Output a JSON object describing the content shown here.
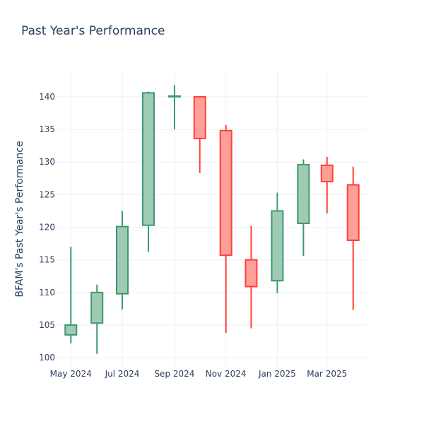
{
  "chart_data": {
    "type": "candlestick",
    "title": "Past Year's Performance",
    "xlabel": "",
    "ylabel": "BFAM's Past Year's Performance",
    "ylim": [
      98.5,
      144
    ],
    "yticks": [
      100,
      105,
      110,
      115,
      120,
      125,
      130,
      135,
      140
    ],
    "xticks": [
      {
        "label": "May 2024",
        "date": "2024-05-01"
      },
      {
        "label": "Jul 2024",
        "date": "2024-07-01"
      },
      {
        "label": "Sep 2024",
        "date": "2024-09-01"
      },
      {
        "label": "Nov 2024",
        "date": "2024-11-01"
      },
      {
        "label": "Jan 2025",
        "date": "2025-01-01"
      },
      {
        "label": "Mar 2025",
        "date": "2025-03-01"
      }
    ],
    "grid": true,
    "legend": "none",
    "colors": {
      "increasing_line": "#3d9970",
      "increasing_fill": "#9fcbb4",
      "decreasing_line": "#ff4136",
      "decreasing_fill": "#ff9f9a",
      "grid": "#ebf0f8",
      "text": "#2a3f5f"
    },
    "candles": [
      {
        "date": "2024-05-01",
        "open": 103.5,
        "high": 117.0,
        "low": 102.2,
        "close": 105.0
      },
      {
        "date": "2024-06-01",
        "open": 105.3,
        "high": 111.2,
        "low": 100.6,
        "close": 110.0
      },
      {
        "date": "2024-07-01",
        "open": 109.8,
        "high": 122.5,
        "low": 107.4,
        "close": 120.1
      },
      {
        "date": "2024-08-01",
        "open": 120.3,
        "high": 140.8,
        "low": 116.2,
        "close": 140.6
      },
      {
        "date": "2024-09-01",
        "open": 140.0,
        "high": 141.8,
        "low": 135.0,
        "close": 140.1
      },
      {
        "date": "2024-10-01",
        "open": 140.0,
        "high": 140.0,
        "low": 128.3,
        "close": 133.6
      },
      {
        "date": "2024-11-01",
        "open": 134.8,
        "high": 135.7,
        "low": 103.8,
        "close": 115.7
      },
      {
        "date": "2024-12-01",
        "open": 115.0,
        "high": 120.2,
        "low": 104.5,
        "close": 110.9
      },
      {
        "date": "2025-01-01",
        "open": 111.8,
        "high": 125.3,
        "low": 109.9,
        "close": 122.5
      },
      {
        "date": "2025-02-01",
        "open": 120.6,
        "high": 130.4,
        "low": 115.6,
        "close": 129.6
      },
      {
        "date": "2025-03-01",
        "open": 129.5,
        "high": 130.8,
        "low": 122.1,
        "close": 127.0
      },
      {
        "date": "2025-04-01",
        "open": 126.5,
        "high": 129.3,
        "low": 107.3,
        "close": 118.0
      }
    ]
  }
}
